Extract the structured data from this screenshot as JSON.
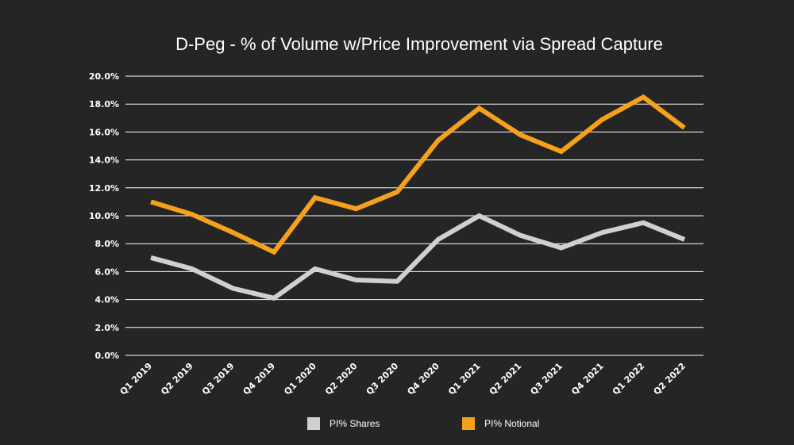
{
  "chart_data": {
    "type": "line",
    "title": "D-Peg - % of Volume w/Price Improvement via Spread Capture",
    "xlabel": "",
    "ylabel": "",
    "ylim": [
      0,
      20
    ],
    "y_ticks": [
      "0.0%",
      "2.0%",
      "4.0%",
      "6.0%",
      "8.0%",
      "10.0%",
      "12.0%",
      "14.0%",
      "16.0%",
      "18.0%",
      "20.0%"
    ],
    "grid": true,
    "legend_position": "bottom",
    "categories": [
      "Q1 2019",
      "Q2 2019",
      "Q3 2019",
      "Q4 2019",
      "Q1 2020",
      "Q2 2020",
      "Q3 2020",
      "Q4 2020",
      "Q1 2021",
      "Q2 2021",
      "Q3 2021",
      "Q4 2021",
      "Q1 2022",
      "Q2 2022"
    ],
    "series": [
      {
        "name": "PI% Shares",
        "color": "#d0d0d0",
        "values": [
          7.0,
          6.2,
          4.8,
          4.1,
          6.2,
          5.4,
          5.3,
          8.3,
          10.0,
          8.6,
          7.7,
          8.8,
          9.5,
          8.3
        ]
      },
      {
        "name": "PI% Notional",
        "color": "#f5a11c",
        "values": [
          11.0,
          10.1,
          8.8,
          7.4,
          11.3,
          10.5,
          11.7,
          15.4,
          17.7,
          15.8,
          14.6,
          16.9,
          18.5,
          16.3
        ]
      }
    ]
  }
}
